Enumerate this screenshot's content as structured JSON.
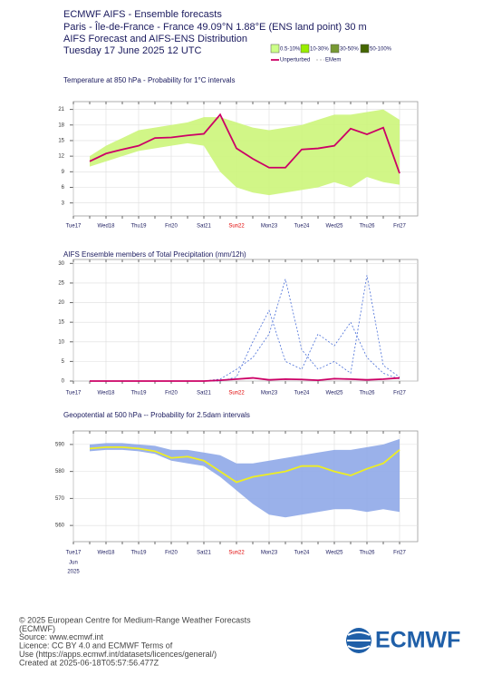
{
  "header": {
    "title": "ECMWF AIFS - Ensemble forecasts",
    "location": "Paris - Île-de-France - France 49.09°N 1.88°E (ENS land point) 30 m",
    "subtitle": "AIFS Forecast and AIFS-ENS Distribution",
    "date": "Tuesday 17 June 2025 12 UTC"
  },
  "chart_data": [
    {
      "type": "line",
      "title": "Temperature at 850 hPa - Probability for 1°C intervals",
      "legend": [
        {
          "label": "0.5-10%",
          "color": "#ccff88",
          "kind": "box"
        },
        {
          "label": "10-30%",
          "color": "#99ee00",
          "kind": "box"
        },
        {
          "label": "30-50%",
          "color": "#779933",
          "kind": "box"
        },
        {
          "label": "50-100%",
          "color": "#446600",
          "kind": "box"
        },
        {
          "label": "Unperturbed",
          "color": "#cc0066",
          "kind": "line"
        },
        {
          "label": "EMem",
          "color": "#bbbbbb",
          "kind": "dash"
        }
      ],
      "categories": [
        "Tue17",
        null,
        "Wed18",
        null,
        "Thu19",
        null,
        "Fri20",
        null,
        "Sat21",
        null,
        "Sun22",
        null,
        "Mon23",
        null,
        "Tue24",
        null,
        "Wed25",
        null,
        "Thu26",
        null,
        "Fri27"
      ],
      "highlight_index": 10,
      "highlight_color": "#e00000",
      "ylim": [
        0.5,
        22.5
      ],
      "yticks": [
        3,
        6,
        9,
        12,
        15,
        18,
        21
      ],
      "grid": true,
      "series": [
        {
          "style": "area",
          "color": "#ccf57a",
          "lower": [
            null,
            10,
            11,
            12,
            13,
            13.5,
            14,
            14.5,
            14,
            9,
            6,
            5,
            4.5,
            5,
            5.5,
            6,
            7,
            6,
            8,
            7,
            6.5
          ],
          "upper": [
            null,
            12,
            14,
            15.5,
            17,
            17.5,
            18,
            18.5,
            19.5,
            19.5,
            18.5,
            17.5,
            17,
            17.5,
            18,
            19,
            20,
            20,
            20.5,
            21,
            19
          ]
        },
        {
          "style": "line",
          "color": "#cc0066",
          "values": [
            null,
            11,
            12.5,
            13.3,
            14,
            15.5,
            15.6,
            16,
            16.3,
            20,
            13.5,
            11.5,
            9.8,
            9.8,
            13.3,
            13.5,
            14,
            17.3,
            16.2,
            17.5,
            8.7
          ]
        }
      ]
    },
    {
      "type": "line",
      "title": "AIFS Ensemble members of Total Precipitation (mm/12h)",
      "categories": [
        "Tue17",
        null,
        "Wed18",
        null,
        "Thu19",
        null,
        "Fri20",
        null,
        "Sat21",
        null,
        "Sun22",
        null,
        "Mon23",
        null,
        "Tue24",
        null,
        "Wed25",
        null,
        "Thu26",
        null,
        "Fri27"
      ],
      "highlight_index": 10,
      "highlight_color": "#e00000",
      "ylim": [
        0,
        31
      ],
      "yticks": [
        0,
        5,
        10,
        15,
        20,
        25,
        30
      ],
      "grid": true,
      "series": [
        {
          "style": "dash",
          "color": "#4a6fd8",
          "values": [
            null,
            0,
            0,
            0,
            0,
            0,
            0,
            0,
            0,
            0.5,
            3,
            6,
            12,
            26,
            8,
            3,
            5,
            2,
            27,
            4,
            1
          ]
        },
        {
          "style": "dash",
          "color": "#4a6fd8",
          "values": [
            null,
            0,
            0,
            0,
            0,
            0,
            0,
            0,
            0,
            0,
            1,
            10,
            18,
            5,
            3,
            12,
            9,
            15,
            6,
            2,
            0.5
          ]
        },
        {
          "style": "line",
          "color": "#cc0066",
          "values": [
            null,
            0,
            0,
            0,
            0,
            0,
            0,
            0,
            0,
            0.2,
            0.5,
            0.8,
            0.3,
            0.5,
            0.4,
            0.2,
            0.6,
            0.5,
            0.3,
            0.5,
            0.8
          ]
        }
      ]
    },
    {
      "type": "line",
      "title": "Geopotential at 500 hPa -- Probability for 2.5dam intervals",
      "categories": [
        "Tue17",
        null,
        "Wed18",
        null,
        "Thu19",
        null,
        "Fri20",
        null,
        "Sat21",
        null,
        "Sun22",
        null,
        "Mon23",
        null,
        "Tue24",
        null,
        "Wed25",
        null,
        "Thu26",
        null,
        "Fri27"
      ],
      "x_sublabels": [
        "Jun",
        "2025"
      ],
      "highlight_index": 10,
      "highlight_color": "#e00000",
      "ylim": [
        554,
        595
      ],
      "yticks": [
        560,
        570,
        580,
        590
      ],
      "grid": true,
      "series": [
        {
          "style": "area",
          "color": "#8fa8e8",
          "lower": [
            null,
            587.5,
            588,
            588,
            587.5,
            586.5,
            584,
            583,
            582,
            578,
            573,
            568,
            564,
            563,
            564,
            565,
            566,
            566,
            565,
            566,
            565
          ],
          "upper": [
            null,
            590,
            590.5,
            590.5,
            590,
            589.5,
            588,
            588,
            587,
            586,
            583,
            583,
            584,
            585,
            586,
            587,
            588,
            588,
            589,
            590,
            592
          ]
        },
        {
          "style": "line",
          "color": "#eeee22",
          "values": [
            null,
            588.5,
            589,
            589,
            588.5,
            587.5,
            585,
            585.5,
            584,
            580,
            576,
            578,
            579,
            580,
            582,
            582,
            580,
            578.5,
            581,
            583,
            588
          ]
        }
      ]
    }
  ],
  "footer": {
    "lines": [
      "© 2025 European Centre for Medium-Range Weather Forecasts",
      "(ECMWF)",
      "Source: www.ecmwf.int",
      "Licence: CC BY 4.0 and ECMWF Terms of",
      "Use (https://apps.ecmwf.int/datasets/licences/general/)",
      "Created at 2025-06-18T05:57:56.477Z"
    ]
  },
  "logo": "ECMWF"
}
